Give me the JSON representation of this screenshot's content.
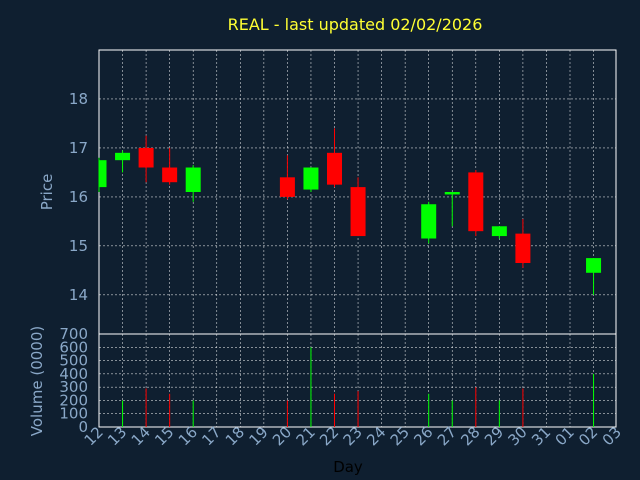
{
  "chart_data": {
    "type": "candlestick",
    "title": "REAL - last updated 02/02/2026",
    "xlabel": "Day",
    "price_panel": {
      "ylabel": "Price",
      "ylim": [
        13.2,
        19
      ],
      "yticks": [
        14,
        15,
        16,
        17,
        18
      ],
      "grid": true
    },
    "volume_panel": {
      "ylabel": "Volume (0000)",
      "ylim": [
        0,
        700
      ],
      "yticks": [
        0,
        100,
        200,
        300,
        400,
        500,
        600,
        700
      ],
      "grid": true
    },
    "x_labels": [
      "12",
      "13",
      "14",
      "15",
      "16",
      "17",
      "18",
      "19",
      "20",
      "21",
      "22",
      "23",
      "24",
      "25",
      "26",
      "27",
      "28",
      "29",
      "30",
      "31",
      "01",
      "02",
      "03"
    ],
    "candles": [
      {
        "day": "12",
        "open": 16.2,
        "high": 16.8,
        "low": 16.1,
        "close": 16.75,
        "volume": 0
      },
      {
        "day": "13",
        "open": 16.75,
        "high": 16.95,
        "low": 16.5,
        "close": 16.9,
        "volume": 200
      },
      {
        "day": "14",
        "open": 17.0,
        "high": 17.25,
        "low": 16.3,
        "close": 16.6,
        "volume": 290
      },
      {
        "day": "15",
        "open": 16.6,
        "high": 17.0,
        "low": 16.25,
        "close": 16.3,
        "volume": 250
      },
      {
        "day": "16",
        "open": 16.1,
        "high": 16.65,
        "low": 15.9,
        "close": 16.6,
        "volume": 200
      },
      {
        "day": "20",
        "open": 16.4,
        "high": 16.85,
        "low": 15.95,
        "close": 16.0,
        "volume": 200
      },
      {
        "day": "21",
        "open": 16.15,
        "high": 16.6,
        "low": 16.1,
        "close": 16.6,
        "volume": 600
      },
      {
        "day": "22",
        "open": 16.9,
        "high": 17.4,
        "low": 16.2,
        "close": 16.25,
        "volume": 250
      },
      {
        "day": "23",
        "open": 16.2,
        "high": 16.4,
        "low": 15.2,
        "close": 15.2,
        "volume": 270
      },
      {
        "day": "26",
        "open": 15.15,
        "high": 15.9,
        "low": 15.05,
        "close": 15.85,
        "volume": 250
      },
      {
        "day": "27",
        "open": 16.05,
        "high": 16.1,
        "low": 15.4,
        "close": 16.1,
        "volume": 200
      },
      {
        "day": "28",
        "open": 16.5,
        "high": 16.55,
        "low": 15.2,
        "close": 15.3,
        "volume": 300
      },
      {
        "day": "29",
        "open": 15.2,
        "high": 15.4,
        "low": 15.15,
        "close": 15.4,
        "volume": 200
      },
      {
        "day": "30",
        "open": 15.25,
        "high": 15.55,
        "low": 14.55,
        "close": 14.65,
        "volume": 290
      },
      {
        "day": "02",
        "open": 14.45,
        "high": 14.75,
        "low": 14.0,
        "close": 14.75,
        "volume": 400
      }
    ],
    "colors": {
      "background": "#0f1f30",
      "plot_border": "#ffffff",
      "grid": "#ffffff",
      "up": "#00ff00",
      "down": "#ff0000",
      "title": "#ffff33",
      "text": "#8aa8c8"
    }
  }
}
